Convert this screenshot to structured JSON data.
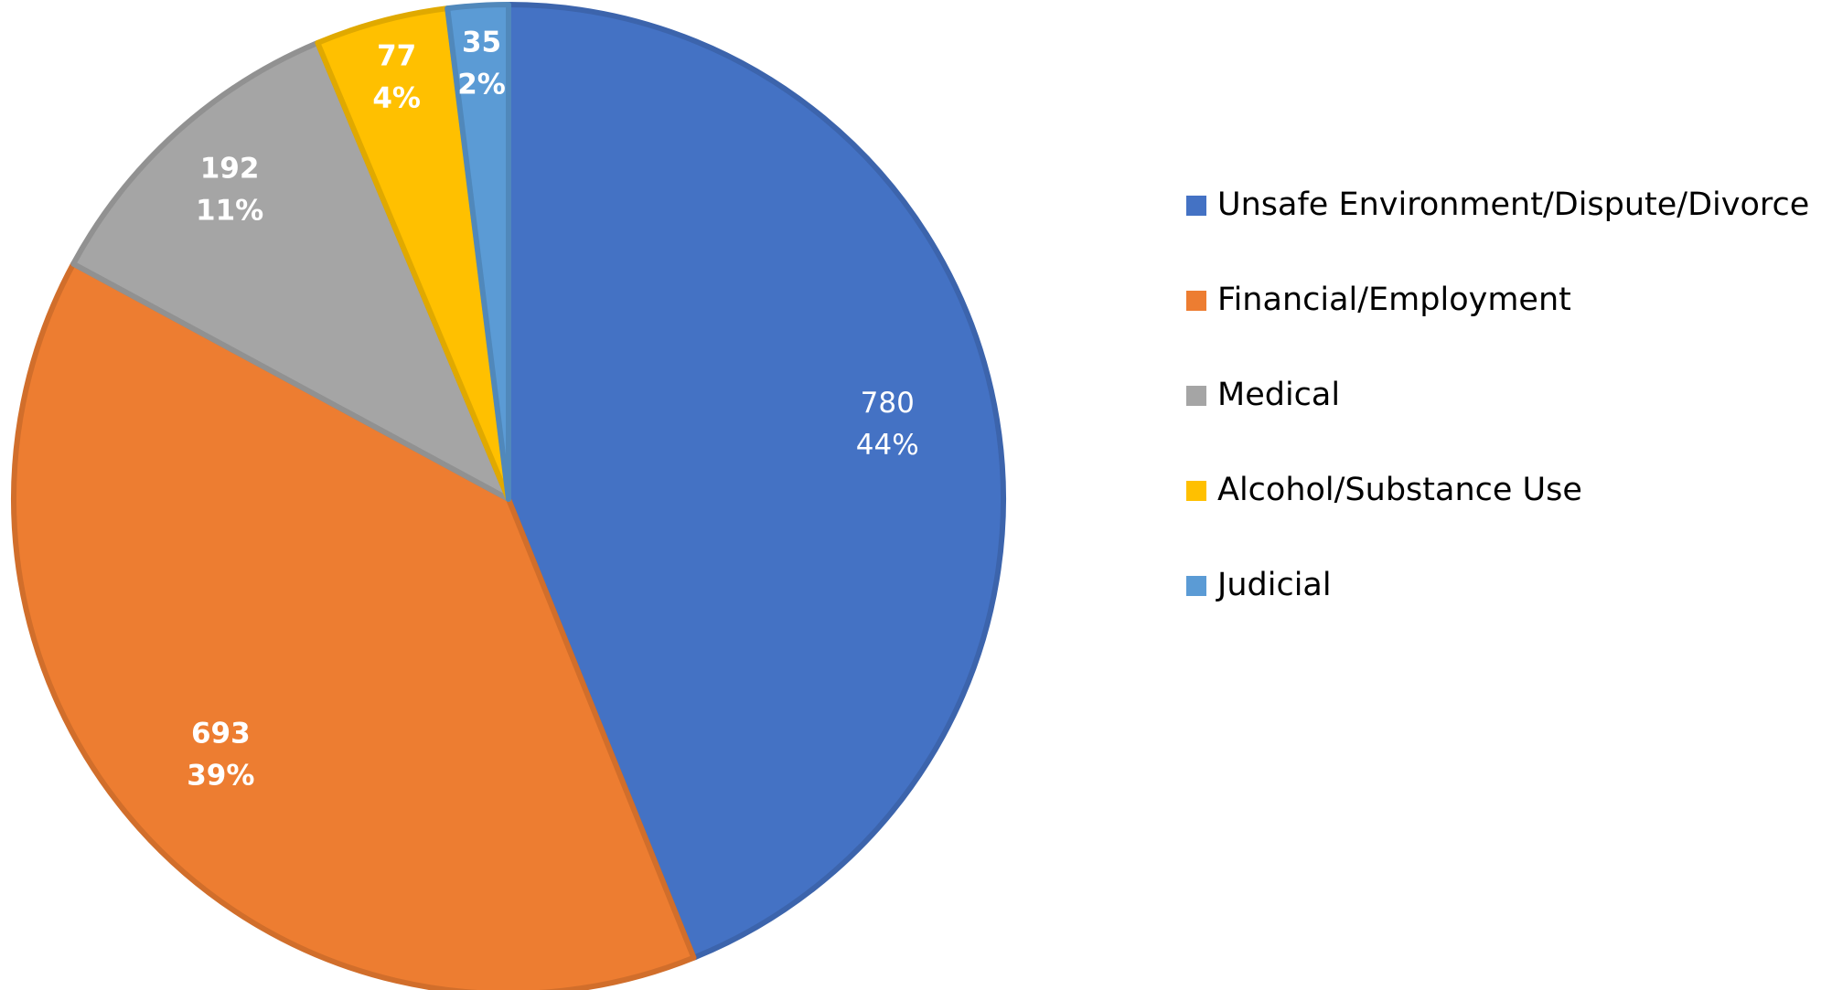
{
  "chart_data": {
    "type": "pie",
    "categories": [
      "Unsafe Environment/Dispute/Divorce",
      "Financial/Employment",
      "Medical",
      "Alcohol/Substance Use",
      "Judicial"
    ],
    "values": [
      780,
      693,
      192,
      77,
      35
    ],
    "percentages": [
      44,
      39,
      11,
      4,
      2
    ],
    "percentage_labels": [
      "44%",
      "39%",
      "11%",
      "4%",
      "2%"
    ],
    "colors": [
      "#4472c4",
      "#ed7d31",
      "#a5a5a5",
      "#ffc000",
      "#5b9bd5"
    ],
    "legend": "right"
  }
}
